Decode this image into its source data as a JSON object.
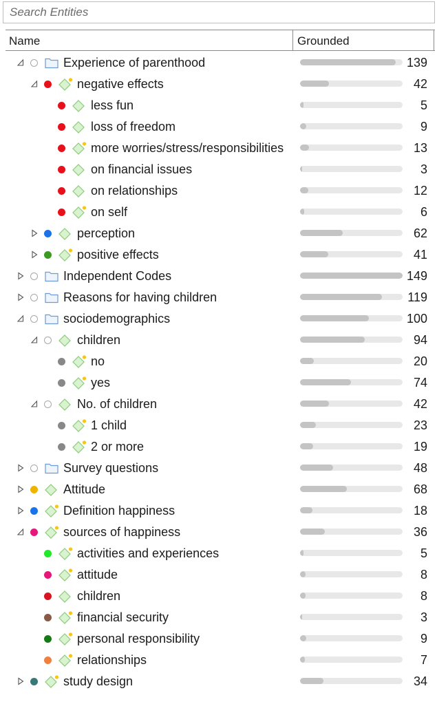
{
  "search": {
    "placeholder": "Search Entities"
  },
  "header": {
    "name": "Name",
    "grounded": "Grounded"
  },
  "max_count": 149,
  "rows": [
    {
      "label": "Experience of parenthood",
      "count": "139",
      "level": 0,
      "toggle": "expanded",
      "dot": "empty",
      "icon": "folder",
      "star": false
    },
    {
      "label": "negative effects",
      "count": "42",
      "level": 1,
      "toggle": "expanded",
      "dot": "#e8101a",
      "icon": "code",
      "star": true
    },
    {
      "label": "less fun",
      "count": "5",
      "level": 2,
      "toggle": "none",
      "dot": "#e8101a",
      "icon": "code",
      "star": false
    },
    {
      "label": "loss of freedom",
      "count": "9",
      "level": 2,
      "toggle": "none",
      "dot": "#e8101a",
      "icon": "code",
      "star": false
    },
    {
      "label": "more worries/stress/responsibilities",
      "count": "13",
      "level": 2,
      "toggle": "none",
      "dot": "#e8101a",
      "icon": "code",
      "star": true
    },
    {
      "label": "on financial issues",
      "count": "3",
      "level": 2,
      "toggle": "none",
      "dot": "#e8101a",
      "icon": "code",
      "star": false
    },
    {
      "label": "on relationships",
      "count": "12",
      "level": 2,
      "toggle": "none",
      "dot": "#e8101a",
      "icon": "code",
      "star": false
    },
    {
      "label": "on self",
      "count": "6",
      "level": 2,
      "toggle": "none",
      "dot": "#e8101a",
      "icon": "code",
      "star": true
    },
    {
      "label": "perception",
      "count": "62",
      "level": 1,
      "toggle": "collapsed",
      "dot": "#1a73e8",
      "icon": "code",
      "star": false
    },
    {
      "label": "positive effects",
      "count": "41",
      "level": 1,
      "toggle": "collapsed",
      "dot": "#3a9a22",
      "icon": "code",
      "star": true
    },
    {
      "label": "Independent Codes",
      "count": "149",
      "level": 0,
      "toggle": "collapsed",
      "dot": "empty",
      "icon": "folder",
      "star": false
    },
    {
      "label": "Reasons for having children",
      "count": "119",
      "level": 0,
      "toggle": "collapsed",
      "dot": "empty",
      "icon": "folder",
      "star": false
    },
    {
      "label": "sociodemographics",
      "count": "100",
      "level": 0,
      "toggle": "expanded",
      "dot": "empty",
      "icon": "folder",
      "star": false
    },
    {
      "label": "children",
      "count": "94",
      "level": 1,
      "toggle": "expanded",
      "dot": "empty",
      "icon": "code",
      "star": false
    },
    {
      "label": "no",
      "count": "20",
      "level": 2,
      "toggle": "none",
      "dot": "#888888",
      "icon": "code",
      "star": true
    },
    {
      "label": "yes",
      "count": "74",
      "level": 2,
      "toggle": "none",
      "dot": "#888888",
      "icon": "code",
      "star": true
    },
    {
      "label": "No. of children",
      "count": "42",
      "level": 1,
      "toggle": "expanded",
      "dot": "empty",
      "icon": "code",
      "star": false
    },
    {
      "label": "1 child",
      "count": "23",
      "level": 2,
      "toggle": "none",
      "dot": "#888888",
      "icon": "code",
      "star": true
    },
    {
      "label": "2 or more",
      "count": "19",
      "level": 2,
      "toggle": "none",
      "dot": "#888888",
      "icon": "code",
      "star": true
    },
    {
      "label": "Survey questions",
      "count": "48",
      "level": 0,
      "toggle": "collapsed",
      "dot": "empty",
      "icon": "folder",
      "star": false
    },
    {
      "label": "Attitude",
      "count": "68",
      "level": 0,
      "toggle": "collapsed",
      "dot": "#f0b400",
      "icon": "code",
      "star": false
    },
    {
      "label": "Definition happiness",
      "count": "18",
      "level": 0,
      "toggle": "collapsed",
      "dot": "#1a73e8",
      "icon": "code",
      "star": true
    },
    {
      "label": "sources of happiness",
      "count": "36",
      "level": 0,
      "toggle": "expanded",
      "dot": "#e8157a",
      "icon": "code",
      "star": true
    },
    {
      "label": "activities and experiences",
      "count": "5",
      "level": 1,
      "toggle": "none",
      "dot": "#22e82a",
      "icon": "code",
      "star": true
    },
    {
      "label": "attitude",
      "count": "8",
      "level": 1,
      "toggle": "none",
      "dot": "#e8157a",
      "icon": "code",
      "star": true
    },
    {
      "label": "children",
      "count": "8",
      "level": 1,
      "toggle": "none",
      "dot": "#d81420",
      "icon": "code",
      "star": false
    },
    {
      "label": "financial security",
      "count": "3",
      "level": 1,
      "toggle": "none",
      "dot": "#8a5a48",
      "icon": "code",
      "star": true
    },
    {
      "label": "personal responsibility",
      "count": "9",
      "level": 1,
      "toggle": "none",
      "dot": "#157a15",
      "icon": "code",
      "star": true
    },
    {
      "label": "relationships",
      "count": "7",
      "level": 1,
      "toggle": "none",
      "dot": "#f08040",
      "icon": "code",
      "star": true
    },
    {
      "label": "study design",
      "count": "34",
      "level": 0,
      "toggle": "collapsed",
      "dot": "#3a7878",
      "icon": "code",
      "star": true
    }
  ]
}
